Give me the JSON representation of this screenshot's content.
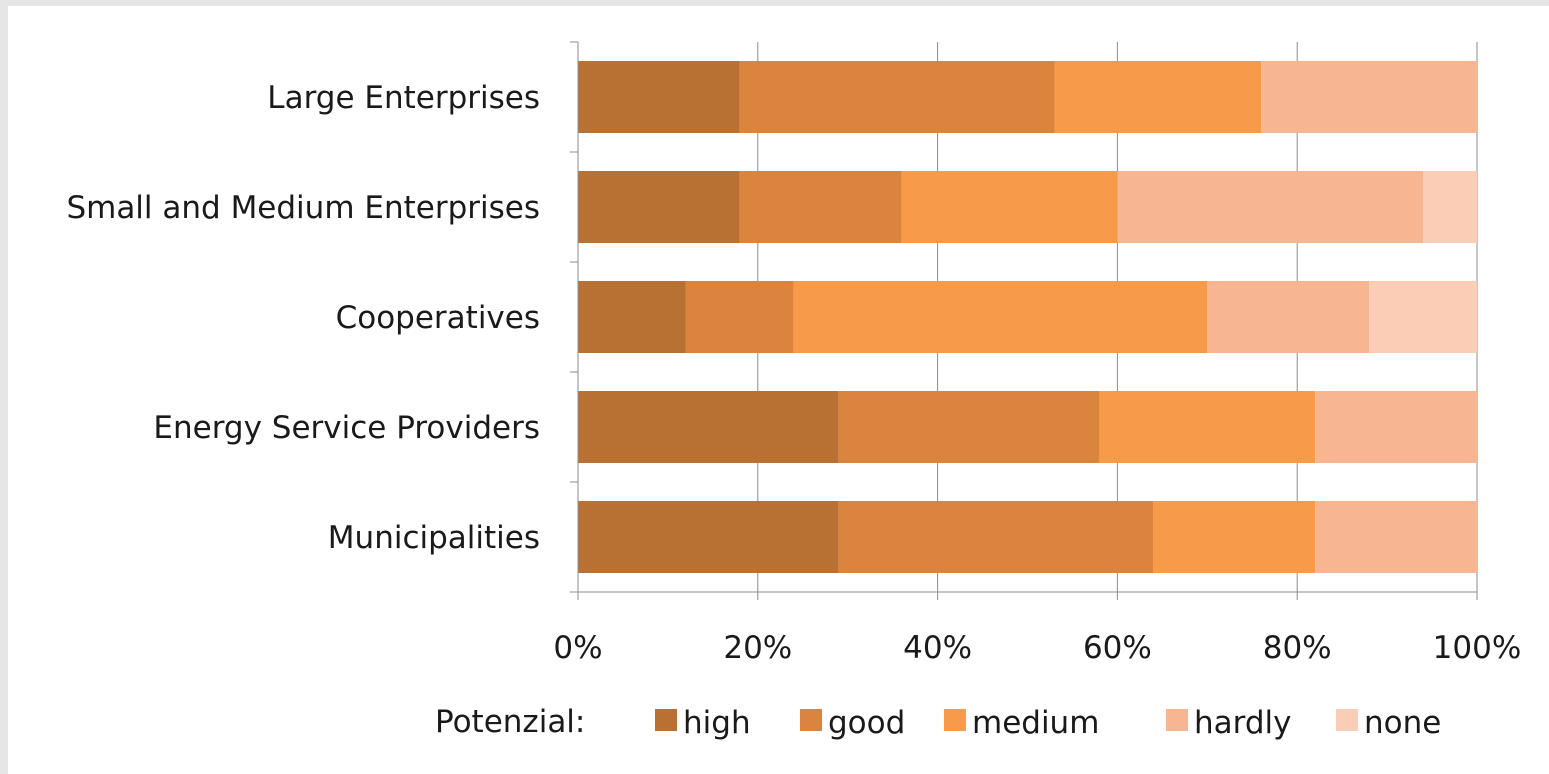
{
  "chart_data": {
    "type": "bar",
    "orientation": "horizontal",
    "stacked": "percent",
    "categories": [
      "Large Enterprises",
      "Small and Medium Enterprises",
      "Cooperatives",
      "Energy Service Providers",
      "Municipalities"
    ],
    "series": [
      {
        "name": "high",
        "color": "#b87033",
        "values": [
          18,
          18,
          12,
          29,
          29
        ]
      },
      {
        "name": "good",
        "color": "#db843e",
        "values": [
          35,
          18,
          12,
          29,
          35
        ]
      },
      {
        "name": "medium",
        "color": "#f79a4a",
        "values": [
          23,
          24,
          46,
          24,
          18
        ]
      },
      {
        "name": "hardly",
        "color": "#f8b591",
        "values": [
          24,
          34,
          18,
          18,
          18
        ]
      },
      {
        "name": "none",
        "color": "#fbcdb6",
        "values": [
          0,
          6,
          12,
          0,
          0
        ]
      }
    ],
    "xlim": [
      0,
      100
    ],
    "xticks": [
      "0%",
      "20%",
      "40%",
      "60%",
      "80%",
      "100%"
    ],
    "grid": "vertical",
    "legend_title": "Potenzial:",
    "legend_position": "bottom"
  }
}
